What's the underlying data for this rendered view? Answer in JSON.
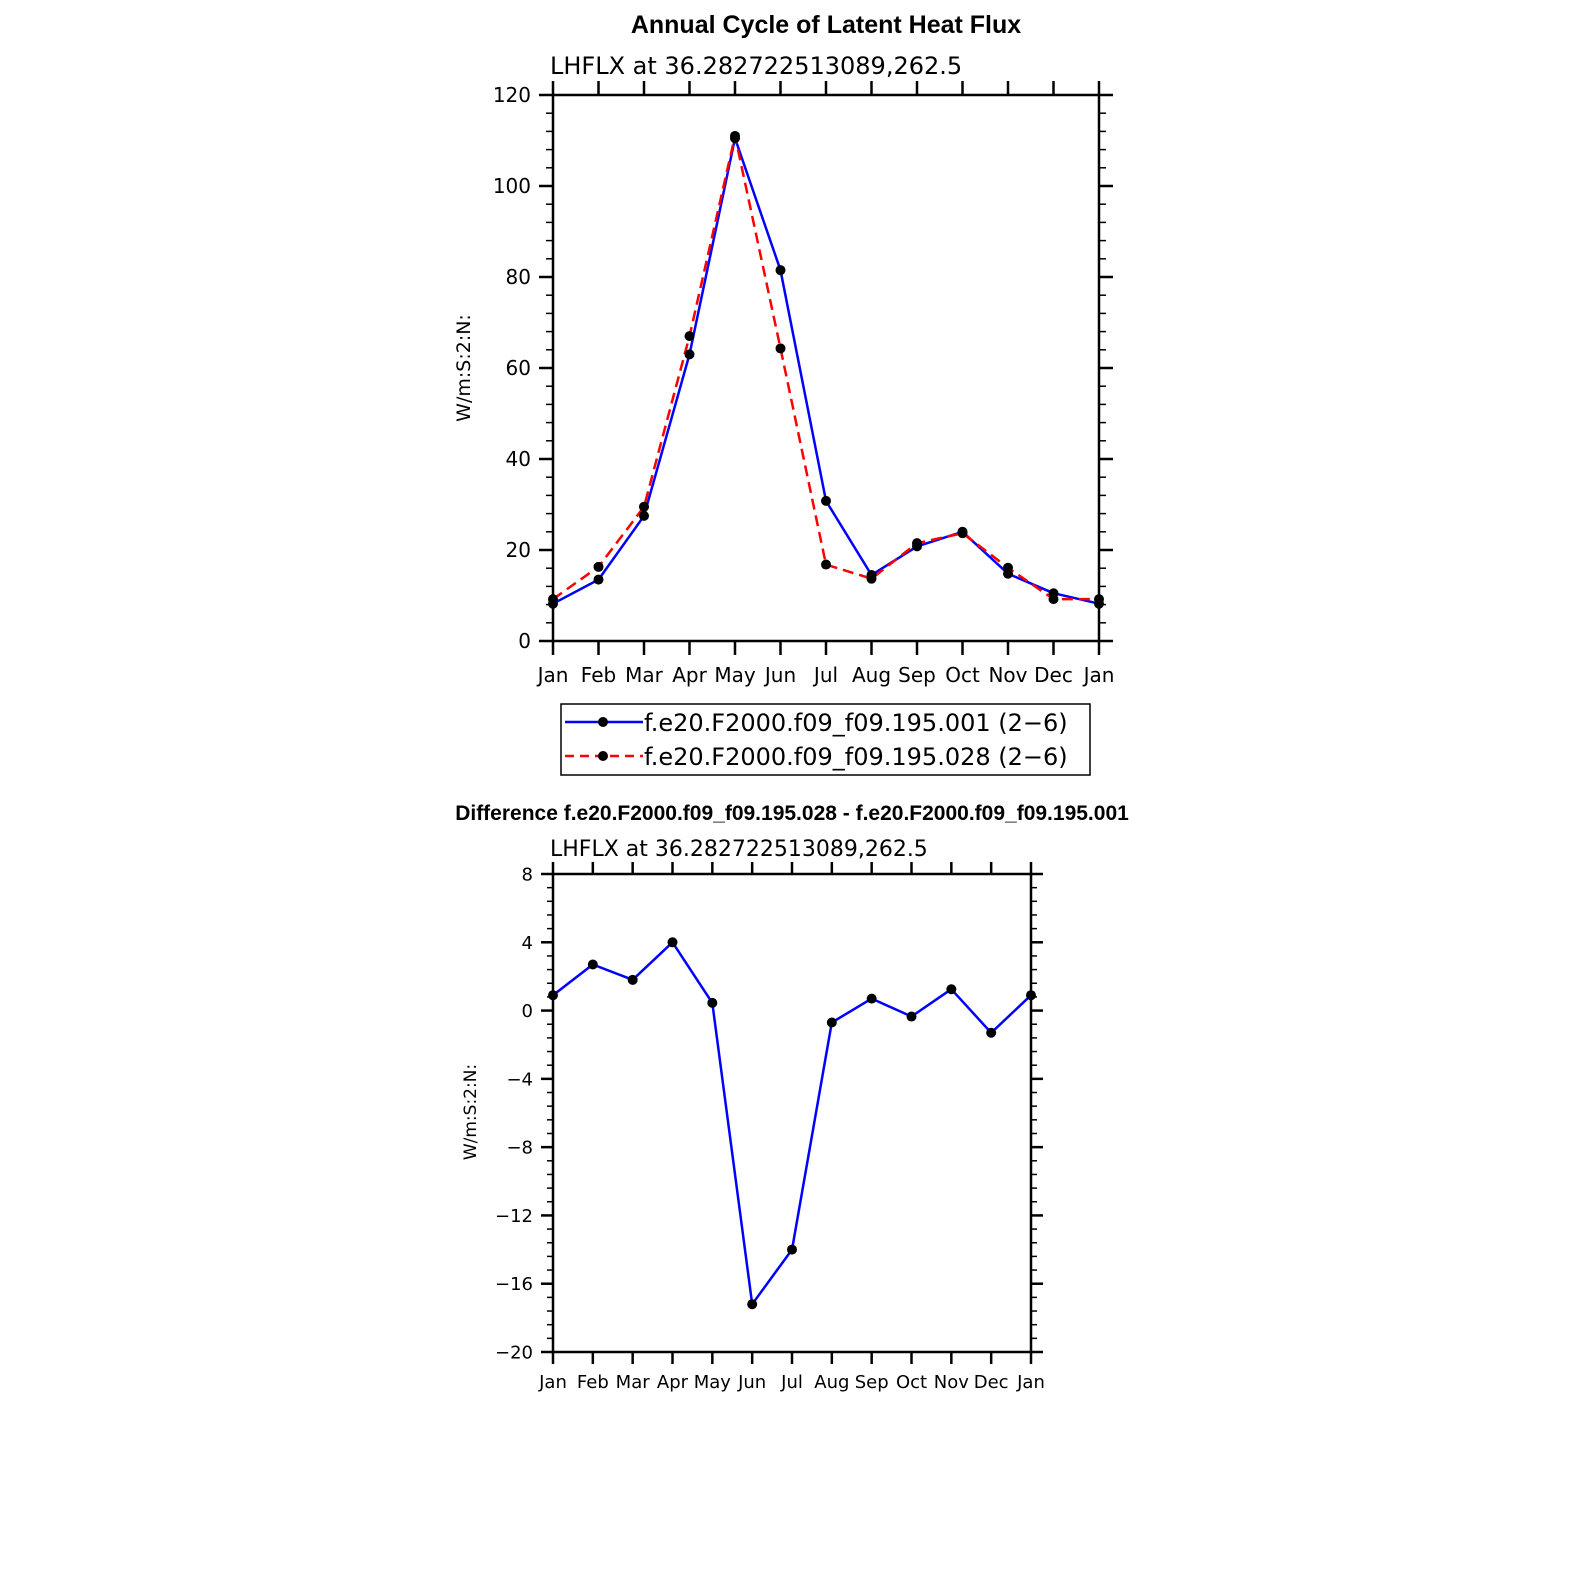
{
  "chart_data": [
    {
      "type": "line",
      "title": "Annual Cycle of Latent Heat Flux",
      "subtitle": "LHFLX  at  36.282722513089,262.5",
      "ylabel": "W/m:S:2:N:",
      "xlabel": "",
      "categories": [
        "Jan",
        "Feb",
        "Mar",
        "Apr",
        "May",
        "Jun",
        "Jul",
        "Aug",
        "Sep",
        "Oct",
        "Nov",
        "Dec",
        "Jan"
      ],
      "ylim": [
        0,
        120
      ],
      "yticks": [
        0,
        20,
        40,
        60,
        80,
        100,
        120
      ],
      "yticks_labels": [
        "0",
        "20",
        "40",
        "60",
        "80",
        "100",
        "120"
      ],
      "series": [
        {
          "name": "f.e20.F2000.f09_f09.195.001 (2−6)",
          "color": "#0000ff",
          "dash": "solid",
          "values": [
            8.2,
            13.5,
            27.5,
            63.0,
            110.5,
            81.5,
            30.8,
            14.5,
            20.8,
            24.0,
            14.8,
            10.5,
            8.2
          ]
        },
        {
          "name": "f.e20.F2000.f09_f09.195.028 (2−6)",
          "color": "#ff0000",
          "dash": "dashed",
          "values": [
            9.2,
            16.3,
            29.5,
            67.0,
            111.0,
            64.3,
            16.8,
            13.7,
            21.5,
            23.7,
            16.1,
            9.2,
            9.2
          ]
        }
      ],
      "grid": false,
      "legend": "bottom"
    },
    {
      "type": "line",
      "title": "Difference f.e20.F2000.f09_f09.195.028 - f.e20.F2000.f09_f09.195.001",
      "subtitle": "LHFLX  at  36.282722513089,262.5",
      "ylabel": "W/m:S:2:N:",
      "xlabel": "",
      "categories": [
        "Jan",
        "Feb",
        "Mar",
        "Apr",
        "May",
        "Jun",
        "Jul",
        "Aug",
        "Sep",
        "Oct",
        "Nov",
        "Dec",
        "Jan"
      ],
      "ylim": [
        -20,
        8
      ],
      "yticks": [
        -20,
        -16,
        -12,
        -8,
        -4,
        0,
        4,
        8
      ],
      "yticks_labels": [
        "−20",
        "−16",
        "−12",
        "−8",
        "−4",
        "0",
        "4",
        "8"
      ],
      "series": [
        {
          "name": "",
          "color": "#0000ff",
          "dash": "solid",
          "values": [
            0.9,
            2.7,
            1.8,
            4.0,
            0.45,
            -17.2,
            -14.0,
            -0.7,
            0.7,
            -0.35,
            1.25,
            -1.3,
            0.9
          ]
        }
      ],
      "grid": false,
      "legend": "none"
    }
  ]
}
